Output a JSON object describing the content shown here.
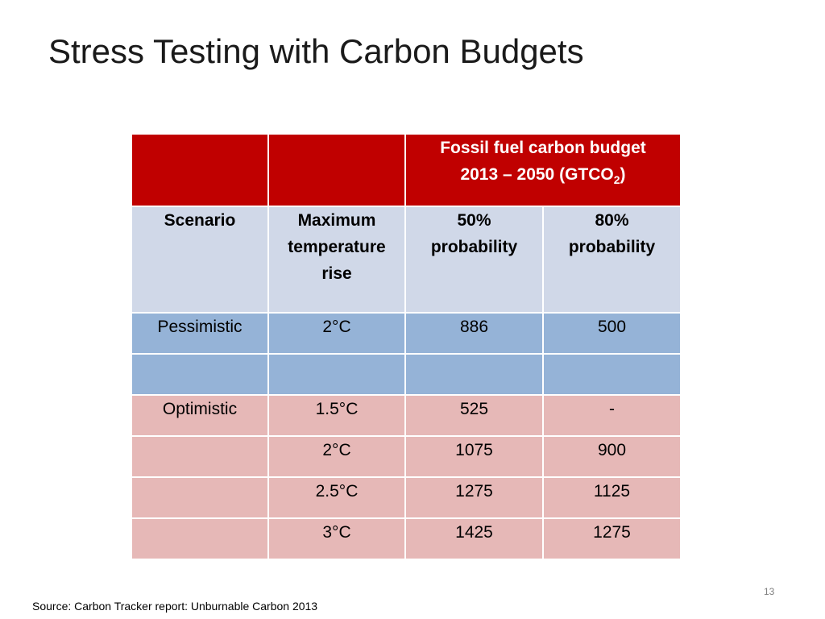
{
  "slide": {
    "title": "Stress Testing with Carbon Budgets",
    "source": "Source: Carbon Tracker report: Unburnable Carbon 2013",
    "page_number": "13"
  },
  "table": {
    "group_header_line1": "Fossil fuel carbon budget",
    "group_header_line2_prefix": "2013 – 2050 (GTCO",
    "group_header_subscript": "2",
    "group_header_line2_suffix": ")",
    "columns": [
      "Scenario",
      "Maximum temperature rise",
      "50% probability",
      "80% probability"
    ],
    "rows": [
      [
        "Pessimistic",
        "2°C",
        "886",
        "500"
      ],
      [
        "",
        "",
        "",
        ""
      ],
      [
        "Optimistic",
        "1.5°C",
        "525",
        "-"
      ],
      [
        "",
        "2°C",
        "1075",
        "900"
      ],
      [
        "",
        "2.5°C",
        "1275",
        "1125"
      ],
      [
        "",
        "3°C",
        "1425",
        "1275"
      ]
    ]
  },
  "colors": {
    "header_red": "#c00000",
    "subheader_lavender": "#d0d8e8",
    "pessimistic_blue": "#95b3d7",
    "optimistic_pink": "#e6b8b7"
  }
}
